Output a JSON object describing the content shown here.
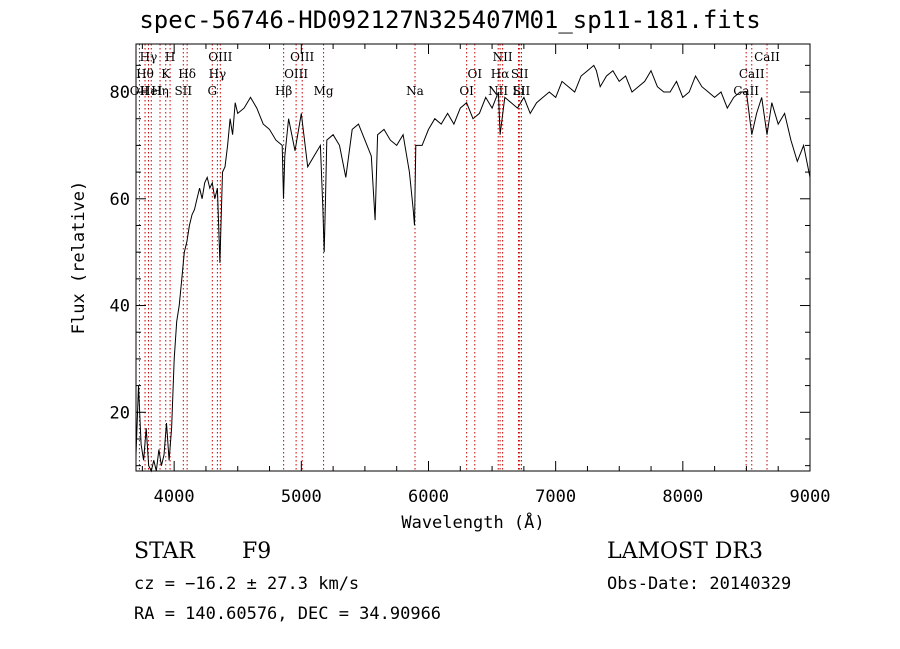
{
  "chart_data": {
    "type": "line",
    "title": "spec-56746-HD092127N325407M01_sp11-181.fits",
    "xlabel": "Wavelength (Å)",
    "ylabel": "Flux (relative)",
    "xlim": [
      3700,
      9000
    ],
    "ylim": [
      9,
      89
    ],
    "xticks": [
      4000,
      5000,
      6000,
      7000,
      8000,
      9000
    ],
    "yticks": [
      20,
      40,
      60,
      80
    ],
    "line_color": "#000000",
    "marker_color": "#cc0000",
    "series": [
      {
        "x": [
          3700,
          3720,
          3740,
          3760,
          3780,
          3800,
          3820,
          3840,
          3860,
          3880,
          3900,
          3920,
          3940,
          3960,
          3980,
          4000,
          4020,
          4040,
          4060,
          4080,
          4100,
          4120,
          4140,
          4160,
          4180,
          4200,
          4220,
          4240,
          4260,
          4280,
          4300,
          4320,
          4340,
          4360,
          4380,
          4400,
          4420,
          4440,
          4460,
          4480,
          4500,
          4550,
          4600,
          4650,
          4700,
          4750,
          4800,
          4850,
          4860,
          4870,
          4900,
          4950,
          5000,
          5050,
          5100,
          5150,
          5170,
          5180,
          5190,
          5200,
          5250,
          5300,
          5350,
          5400,
          5450,
          5500,
          5550,
          5580,
          5600,
          5650,
          5700,
          5750,
          5800,
          5850,
          5880,
          5890,
          5900,
          5950,
          6000,
          6050,
          6100,
          6150,
          6200,
          6250,
          6300,
          6350,
          6400,
          6450,
          6500,
          6550,
          6563,
          6600,
          6650,
          6700,
          6750,
          6800,
          6850,
          6900,
          6950,
          7000,
          7050,
          7100,
          7150,
          7200,
          7250,
          7300,
          7320,
          7350,
          7400,
          7450,
          7500,
          7550,
          7600,
          7650,
          7700,
          7750,
          7800,
          7850,
          7900,
          7950,
          8000,
          8050,
          8100,
          8150,
          8200,
          8250,
          8300,
          8350,
          8400,
          8450,
          8500,
          8542,
          8580,
          8620,
          8662,
          8700,
          8750,
          8800,
          8850,
          8900,
          8950,
          9000
        ],
        "y": [
          12,
          25,
          14,
          11,
          17,
          10,
          9,
          11,
          9,
          13,
          10,
          12,
          18,
          11,
          17,
          30,
          37,
          40,
          45,
          50,
          52,
          55,
          57,
          58,
          60,
          62,
          60,
          63,
          64,
          62,
          63,
          60,
          62,
          48,
          65,
          66,
          70,
          75,
          72,
          78,
          76,
          77,
          79,
          77,
          74,
          73,
          71,
          70,
          60,
          68,
          75,
          69,
          76,
          66,
          68,
          70,
          58,
          50,
          60,
          71,
          72,
          70,
          64,
          73,
          74,
          71,
          68,
          56,
          72,
          73,
          71,
          70,
          72,
          65,
          58,
          55,
          70,
          70,
          73,
          75,
          74,
          76,
          74,
          77,
          78,
          75,
          76,
          79,
          77,
          80,
          72,
          79,
          78,
          77,
          79,
          76,
          78,
          79,
          80,
          79,
          82,
          81,
          80,
          83,
          84,
          85,
          84,
          81,
          83,
          84,
          82,
          83,
          80,
          81,
          82,
          84,
          81,
          80,
          80,
          82,
          79,
          80,
          83,
          81,
          80,
          79,
          80,
          77,
          79,
          80,
          80,
          72,
          76,
          79,
          72,
          78,
          74,
          76,
          71,
          67,
          70,
          64
        ]
      }
    ],
    "lines": [
      {
        "x": 3727,
        "label": "OII"
      },
      {
        "x": 3771,
        "label": "Hθ"
      },
      {
        "x": 3798,
        "label": "Hγ"
      },
      {
        "x": 3820,
        "label": "HeI"
      },
      {
        "x": 3889,
        "label": "Hη"
      },
      {
        "x": 3934,
        "label": "K"
      },
      {
        "x": 3968,
        "label": "H"
      },
      {
        "x": 4072,
        "label": "SII"
      },
      {
        "x": 4102,
        "label": "Hδ"
      },
      {
        "x": 4300,
        "label": "G"
      },
      {
        "x": 4340,
        "label": "Hγ"
      },
      {
        "x": 4363,
        "label": "OIII"
      },
      {
        "x": 4861,
        "label": "Hβ"
      },
      {
        "x": 4959,
        "label": "OIII"
      },
      {
        "x": 5007,
        "label": "OIII"
      },
      {
        "x": 5175,
        "label": "Mg"
      },
      {
        "x": 5894,
        "label": "Na"
      },
      {
        "x": 6300,
        "label": "OI"
      },
      {
        "x": 6364,
        "label": "OI"
      },
      {
        "x": 6548,
        "label": "NII"
      },
      {
        "x": 6563,
        "label": "Hα"
      },
      {
        "x": 6583,
        "label": "NII"
      },
      {
        "x": 6708,
        "label": "Li"
      },
      {
        "x": 6717,
        "label": "SII"
      },
      {
        "x": 6731,
        "label": "SII"
      },
      {
        "x": 8498,
        "label": "CaII"
      },
      {
        "x": 8542,
        "label": "CaII"
      },
      {
        "x": 8662,
        "label": "CaII"
      }
    ],
    "grid": false
  },
  "info": {
    "class_label": "STAR",
    "subclass_label": "F9",
    "survey_label": "LAMOST DR3",
    "cz_text": "cz = −16.2 ± 27.3 km/s",
    "obs_date_text": "Obs-Date: 20140329",
    "coords_text": "RA = 140.60576, DEC =  34.90966"
  }
}
